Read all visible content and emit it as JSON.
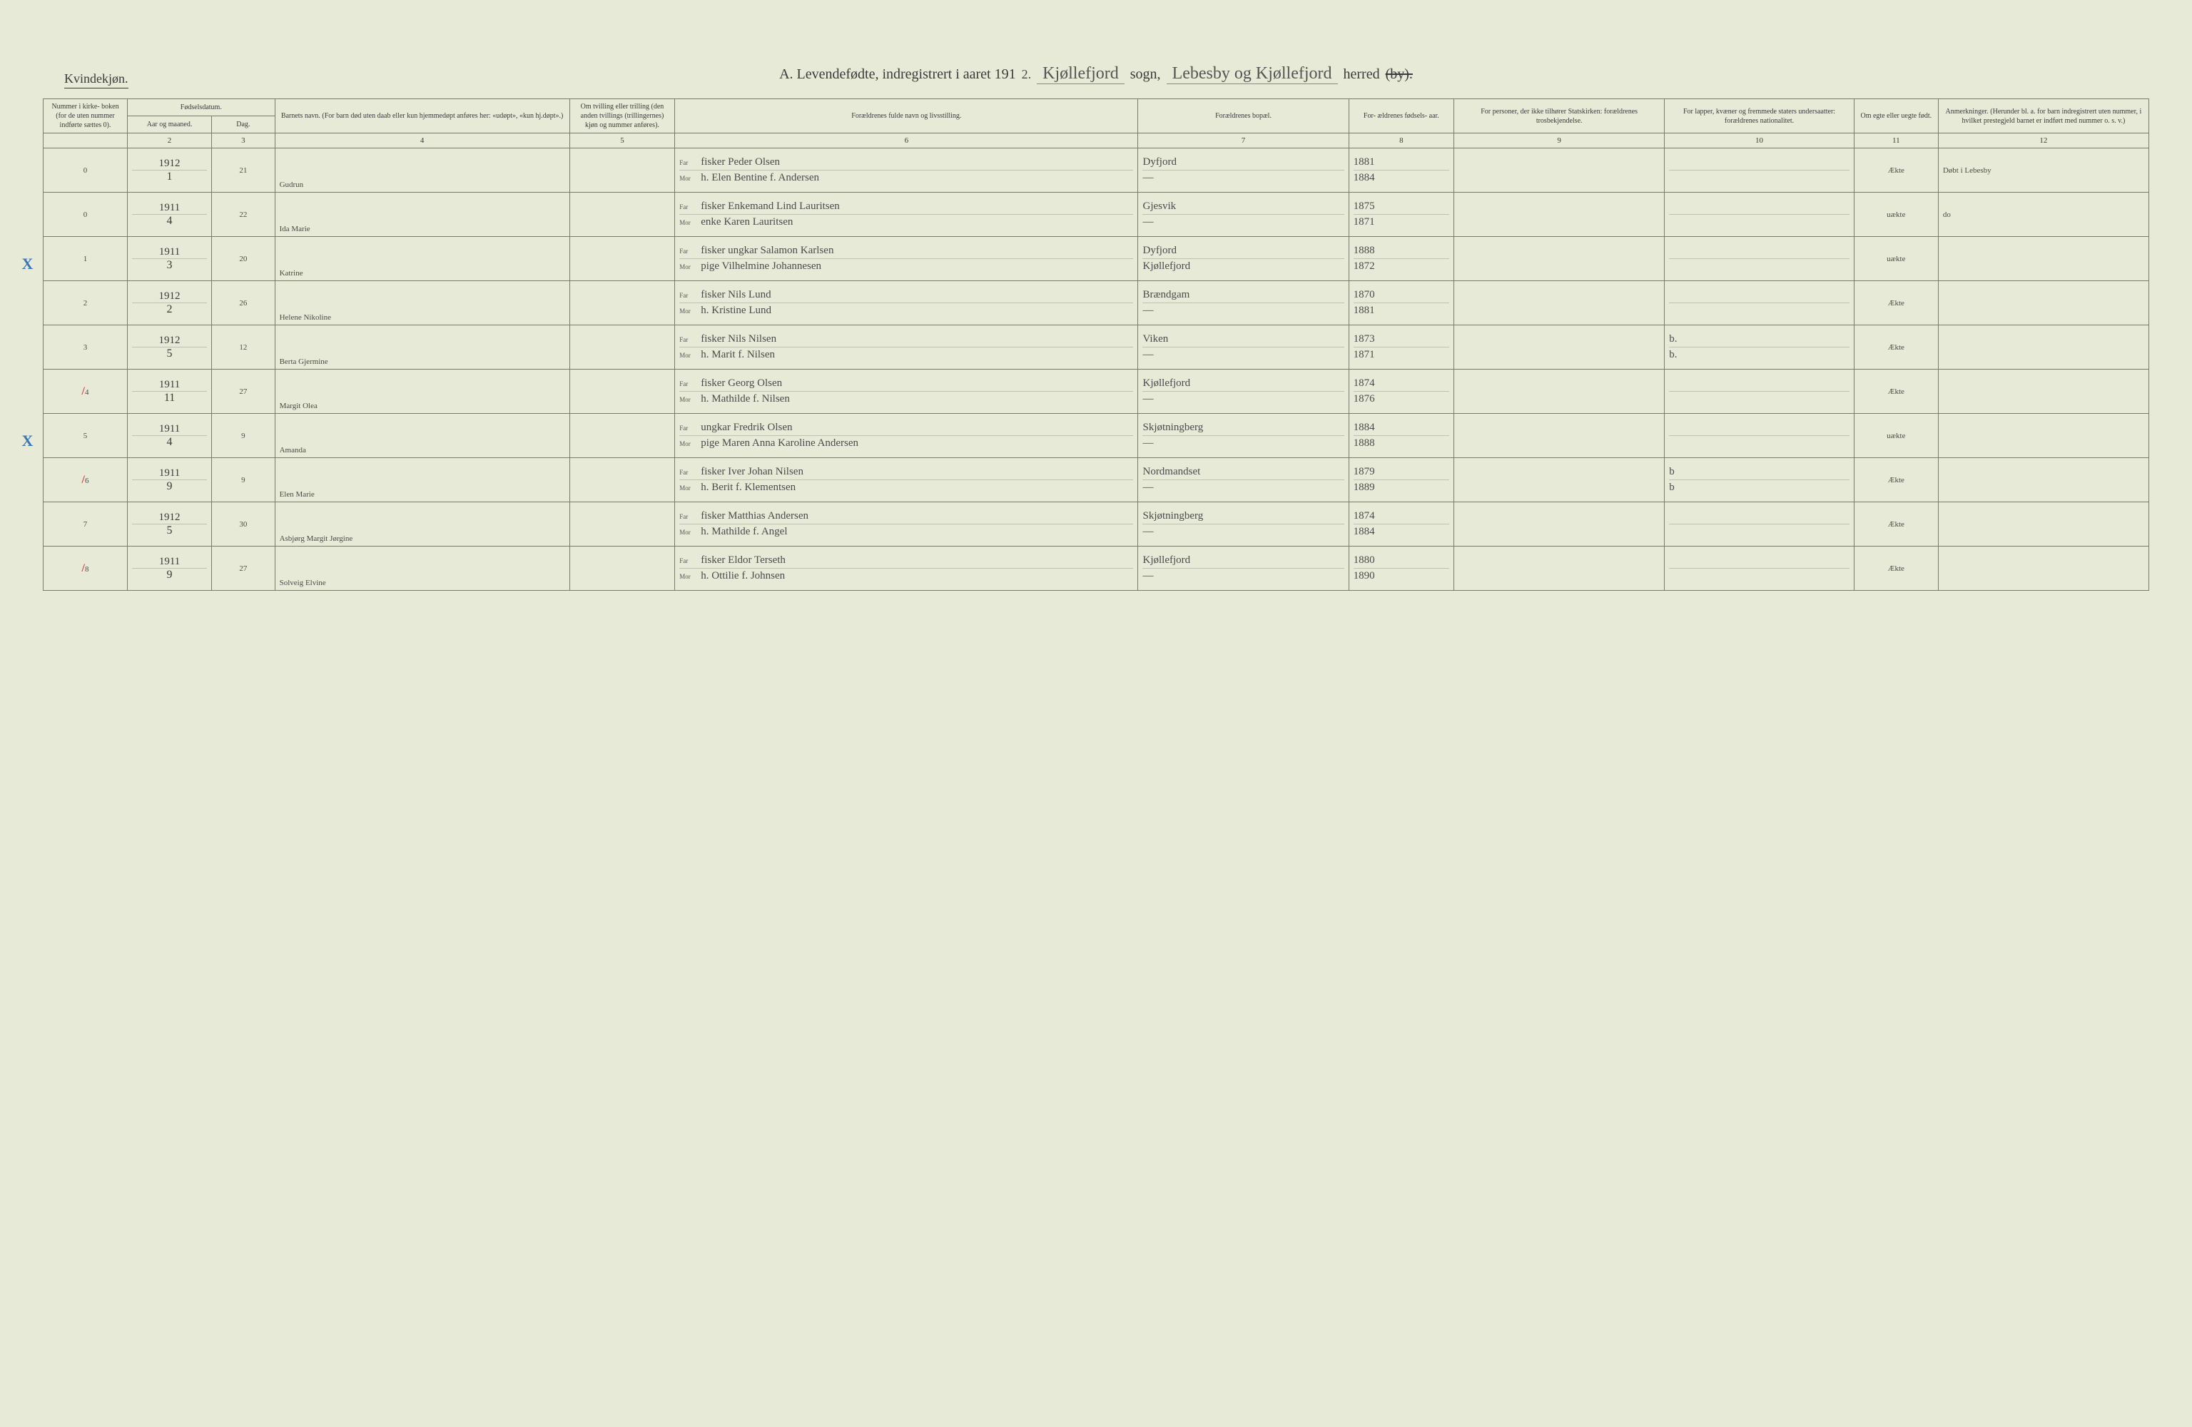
{
  "page": {
    "gender_label": "Kvindekjøn.",
    "title_prefix": "A.  Levendefødte, indregistrert i aaret 191",
    "title_year_written": "2.",
    "sogn_label": "sogn,",
    "sogn_value": "Kjøllefjord",
    "herred_label": "herred",
    "herred_strike": "(by).",
    "herred_value": "Lebesby og Kjøllefjord"
  },
  "columns": {
    "c1": "Nummer i kirke-\nboken\n(for de\nuten\nnummer\nindførte\nsættes\n0).",
    "c2_group": "Fødselsdatum.",
    "c2": "Aar\nog\nmaaned.",
    "c3": "Dag.",
    "c4": "Barnets navn.\n(For barn død uten daab eller kun\nhjemmedøpt anføres her:\n«udøpt», «kun hj.døpt».)",
    "c5": "Om tvilling\neller trilling\n(den anden\ntvillings\n(trillingernes)\nkjøn og\nnummer\nanføres).",
    "c6": "Forældrenes fulde navn og livsstilling.",
    "c7": "Forældrenes bopæl.",
    "c8": "For-\nældrenes\nfødsels-\naar.",
    "c9": "For personer, der ikke\ntilhører Statskirken:\nforældrenes trosbekjendelse.",
    "c10": "For lapper, kvæner og\nfremmede staters\nundersaatter:\nforældrenes nationalitet.",
    "c11": "Om\negte\neller\nuegte\nfødt.",
    "c12": "Anmerkninger.\n(Herunder bl. a. for barn indregistrert\nuten nummer, i hvilket prestegjeld\nbarnet er indført med nummer o. s. v.)",
    "nums": [
      "",
      "2",
      "3",
      "4",
      "5",
      "6",
      "7",
      "8",
      "9",
      "10",
      "11",
      "12"
    ]
  },
  "rows": [
    {
      "num": "0",
      "year": "1912",
      "month": "1",
      "day": "21",
      "name": "Gudrun",
      "far": "fisker Peder Olsen",
      "mor": "h. Elen Bentine f. Andersen",
      "bopel_far": "Dyfjord",
      "bopel_mor": "—",
      "faar_far": "1881",
      "faar_mor": "1884",
      "nat_far": "",
      "nat_mor": "",
      "legit": "Ækte",
      "anm": "Døbt i Lebesby",
      "mark": ""
    },
    {
      "num": "0",
      "year": "1911",
      "month": "4",
      "day": "22",
      "name": "Ida Marie",
      "far": "fisker Enkemand Lind Lauritsen",
      "mor": "enke Karen Lauritsen",
      "bopel_far": "Gjesvik",
      "bopel_mor": "—",
      "faar_far": "1875",
      "faar_mor": "1871",
      "nat_far": "",
      "nat_mor": "",
      "legit": "uækte",
      "anm": "do",
      "mark": ""
    },
    {
      "num": "1",
      "year": "1911",
      "month": "3",
      "day": "20",
      "name": "Katrine",
      "far": "fisker ungkar Salamon Karlsen",
      "mor": "pige Vilhelmine Johannesen",
      "bopel_far": "Dyfjord",
      "bopel_mor": "Kjøllefjord",
      "faar_far": "1888",
      "faar_mor": "1872",
      "nat_far": "",
      "nat_mor": "",
      "legit": "uækte",
      "anm": "",
      "mark": "X"
    },
    {
      "num": "2",
      "year": "1912",
      "month": "2",
      "day": "26",
      "name": "Helene Nikoline",
      "far": "fisker Nils Lund",
      "mor": "h. Kristine Lund",
      "bopel_far": "Brændgam",
      "bopel_mor": "—",
      "faar_far": "1870",
      "faar_mor": "1881",
      "nat_far": "",
      "nat_mor": "",
      "legit": "Ækte",
      "anm": "",
      "mark": ""
    },
    {
      "num": "3",
      "year": "1912",
      "month": "5",
      "day": "12",
      "name": "Berta Gjermine",
      "far": "fisker Nils Nilsen",
      "mor": "h. Marit f. Nilsen",
      "bopel_far": "Viken",
      "bopel_mor": "—",
      "faar_far": "1873",
      "faar_mor": "1871",
      "nat_far": "b.",
      "nat_mor": "b.",
      "legit": "Ækte",
      "anm": "",
      "mark": ""
    },
    {
      "num": "4",
      "year": "1911",
      "month": "11",
      "day": "27",
      "name": "Margit Olea",
      "far": "fisker Georg Olsen",
      "mor": "h. Mathilde f. Nilsen",
      "bopel_far": "Kjøllefjord",
      "bopel_mor": "—",
      "faar_far": "1874",
      "faar_mor": "1876",
      "nat_far": "",
      "nat_mor": "",
      "legit": "Ækte",
      "anm": "",
      "mark": "/"
    },
    {
      "num": "5",
      "year": "1911",
      "month": "4",
      "day": "9",
      "name": "Amanda",
      "far": "ungkar Fredrik Olsen",
      "mor": "pige Maren Anna Karoline Andersen",
      "bopel_far": "Skjøtningberg",
      "bopel_mor": "—",
      "faar_far": "1884",
      "faar_mor": "1888",
      "nat_far": "",
      "nat_mor": "",
      "legit": "uækte",
      "anm": "",
      "mark": "X"
    },
    {
      "num": "6",
      "year": "1911",
      "month": "9",
      "day": "9",
      "name": "Elen Marie",
      "far": "fisker Iver Johan Nilsen",
      "mor": "h. Berit f. Klementsen",
      "bopel_far": "Nordmandset",
      "bopel_mor": "—",
      "faar_far": "1879",
      "faar_mor": "1889",
      "nat_far": "b",
      "nat_mor": "b",
      "legit": "Ækte",
      "anm": "",
      "mark": "/"
    },
    {
      "num": "7",
      "year": "1912",
      "month": "5",
      "day": "30",
      "name": "Asbjørg Margit Jørgine",
      "far": "fisker Matthias Andersen",
      "mor": "h. Mathilde f. Angel",
      "bopel_far": "Skjøtningberg",
      "bopel_mor": "—",
      "faar_far": "1874",
      "faar_mor": "1884",
      "nat_far": "",
      "nat_mor": "",
      "legit": "Ækte",
      "anm": "",
      "mark": ""
    },
    {
      "num": "8",
      "year": "1911",
      "month": "9",
      "day": "27",
      "name": "Solveig Elvine",
      "far": "fisker Eldor Terseth",
      "mor": "h. Ottilie f. Johnsen",
      "bopel_far": "Kjøllefjord",
      "bopel_mor": "—",
      "faar_far": "1880",
      "faar_mor": "1890",
      "nat_far": "",
      "nat_mor": "",
      "legit": "Ækte",
      "anm": "",
      "mark": "/"
    }
  ],
  "labels": {
    "far": "Far",
    "mor": "Mor"
  },
  "colors": {
    "paper": "#e8ead8",
    "ink": "#3a3a3a",
    "rule": "#7a7a6a",
    "handwriting": "#4a4a4a",
    "blue_pencil": "#3878b8",
    "red_mark": "#d04040"
  }
}
